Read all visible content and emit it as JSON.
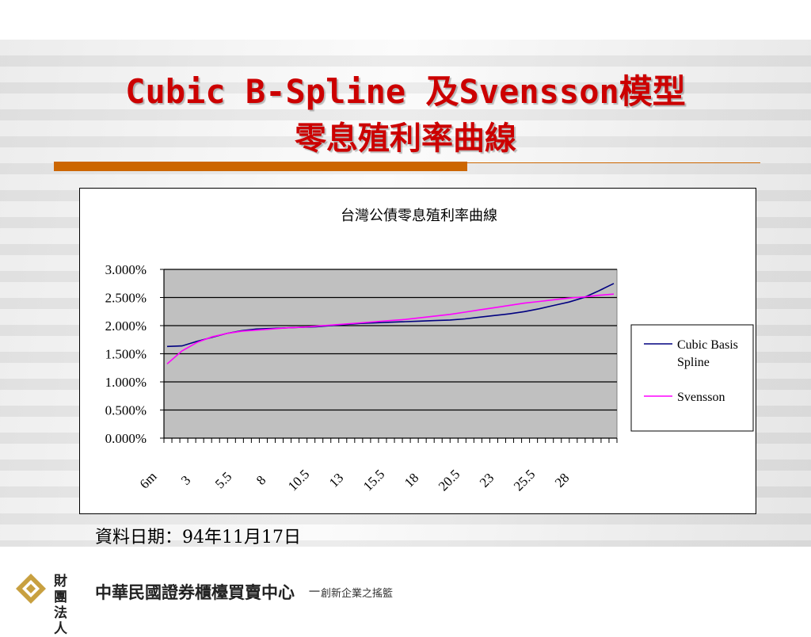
{
  "slide": {
    "title_line1": "Cubic B-Spline 及Svensson模型",
    "title_line2": "零息殖利率曲線",
    "date_note": "資料日期：94年11月17日"
  },
  "footer": {
    "org_prefix": "財團法人",
    "org_name": "中華民國證券櫃檯買賣中心",
    "separator": "－",
    "slogan": "創新企業之搖籃",
    "logo_icon": "gold-diamond-logo-icon"
  },
  "chart_data": {
    "type": "line",
    "title": "台灣公債零息殖利率曲線",
    "xlabel": "",
    "ylabel": "",
    "x_tick_labels": [
      "6m",
      "3",
      "5.5",
      "8",
      "10.5",
      "13",
      "15.5",
      "18",
      "20.5",
      "23",
      "25.5",
      "28"
    ],
    "y_tick_labels": [
      "0.000%",
      "0.500%",
      "1.000%",
      "1.500%",
      "2.000%",
      "2.500%",
      "3.000%"
    ],
    "x": [
      0.5,
      1.5,
      2.5,
      3.5,
      4.5,
      5.5,
      6.5,
      7.5,
      8.5,
      9.5,
      10.5,
      11.5,
      12.5,
      13.5,
      14.5,
      15.5,
      16.5,
      17.5,
      18.5,
      19.5,
      20.5,
      21.5,
      22.5,
      23.5,
      24.5,
      25.5,
      26.5,
      27.5,
      28.5,
      29.5,
      30.5
    ],
    "ylim": [
      0,
      3.0
    ],
    "grid": true,
    "legend_position": "right",
    "plot_background": "#c0c0c0",
    "series": [
      {
        "name": "Cubic Basis Spline",
        "color": "#000080",
        "values": [
          1.63,
          1.64,
          1.72,
          1.79,
          1.86,
          1.91,
          1.94,
          1.95,
          1.96,
          1.97,
          1.98,
          2.0,
          2.02,
          2.04,
          2.05,
          2.06,
          2.07,
          2.08,
          2.09,
          2.1,
          2.12,
          2.15,
          2.18,
          2.21,
          2.25,
          2.3,
          2.36,
          2.42,
          2.5,
          2.62,
          2.75
        ]
      },
      {
        "name": "Svensson",
        "color": "#ff00ff",
        "values": [
          1.32,
          1.55,
          1.7,
          1.8,
          1.86,
          1.9,
          1.92,
          1.94,
          1.96,
          1.97,
          1.99,
          2.01,
          2.03,
          2.05,
          2.07,
          2.09,
          2.11,
          2.14,
          2.17,
          2.2,
          2.24,
          2.28,
          2.32,
          2.36,
          2.4,
          2.43,
          2.46,
          2.49,
          2.51,
          2.54,
          2.56
        ]
      }
    ]
  }
}
